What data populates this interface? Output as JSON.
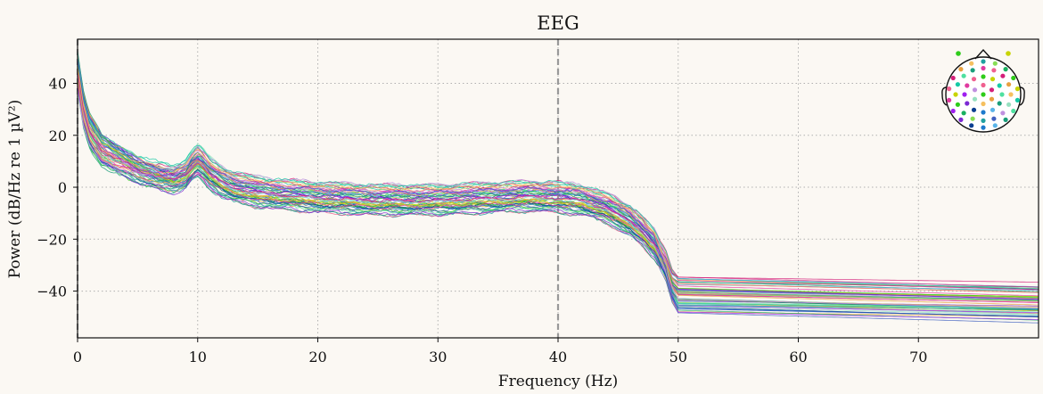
{
  "chart_data": {
    "type": "line",
    "title": "EEG",
    "xlabel": "Frequency (Hz)",
    "ylabel": "Power (dB/Hz re 1 µV²)",
    "xlim": [
      0,
      80
    ],
    "ylim": [
      -58,
      57
    ],
    "xticks": [
      0,
      10,
      20,
      30,
      40,
      50,
      60,
      70
    ],
    "yticks": [
      -40,
      -20,
      0,
      20,
      40
    ],
    "ytick_labels": [
      "−40",
      "−20",
      "0",
      "20",
      "40"
    ],
    "grid": true,
    "vlines": [
      0,
      40
    ],
    "legend": "sensor-layout-inset-top-right",
    "n_channels": 60,
    "template": {
      "x": [
        0,
        0.5,
        1,
        2,
        3,
        5,
        7,
        8,
        9,
        9.5,
        10,
        10.5,
        11,
        12,
        13,
        15,
        20,
        25,
        30,
        35,
        38,
        40,
        42,
        44,
        46,
        47,
        48,
        49,
        49.5,
        50,
        60,
        70,
        80
      ],
      "y": [
        45,
        30,
        22,
        15,
        12,
        7,
        4,
        3,
        5,
        8,
        10,
        8,
        5,
        2,
        0,
        -2,
        -4,
        -5,
        -5,
        -4,
        -3.5,
        -4,
        -5,
        -8,
        -13,
        -17,
        -22,
        -30,
        -37,
        -40,
        -41,
        -42,
        -43
      ]
    },
    "series_summary": {
      "description_range_at_10Hz": [
        3,
        12
      ],
      "range_at_30Hz": [
        -12,
        2
      ],
      "range_at_40Hz": [
        -14,
        3
      ],
      "range_at_60Hz": [
        -50,
        -29
      ],
      "range_at_80Hz": [
        -53,
        -29
      ]
    },
    "sensor_colors": [
      "#2ecc1a",
      "#c8d400",
      "#16c9a5",
      "#4fe0a0",
      "#1a9e7a",
      "#5ab4e8",
      "#1e7acc",
      "#0b3f91",
      "#7c2ad4",
      "#a020f0",
      "#e03aa0",
      "#f06090",
      "#d4207a",
      "#e8a040",
      "#f5c060",
      "#96e0c0",
      "#c090e0",
      "#4060c0",
      "#20a0a0",
      "#88dd55",
      "#1ab060"
    ]
  }
}
